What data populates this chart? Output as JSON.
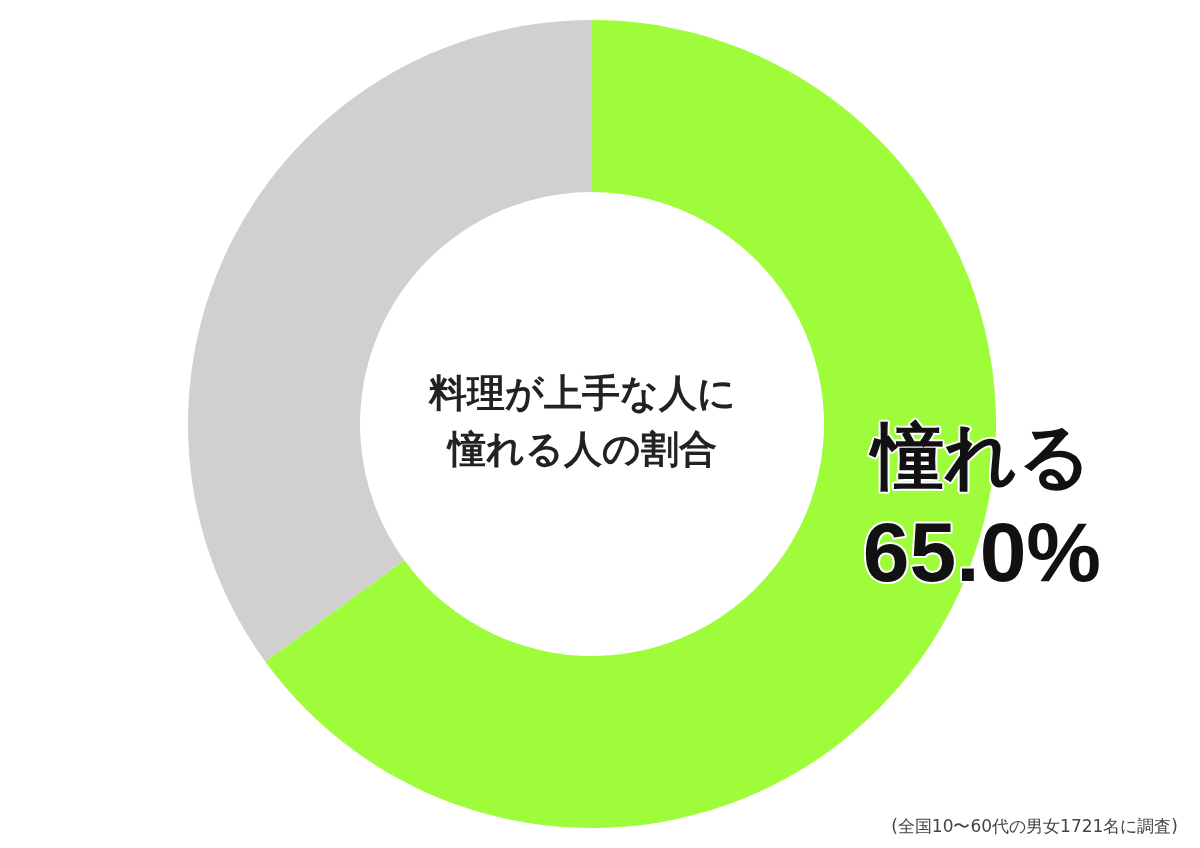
{
  "chart_data": {
    "type": "donut",
    "title": "料理が上手な人に憧れる人の割合",
    "categories": [
      "憧れる",
      null
    ],
    "values": [
      65,
      35
    ],
    "value_labels": [
      "65.0%",
      null
    ],
    "colors": [
      "#9efc3a",
      "#d1cfcf"
    ],
    "annotations": [
      "(全国10〜60代の男女1721名に調査)"
    ]
  }
}
